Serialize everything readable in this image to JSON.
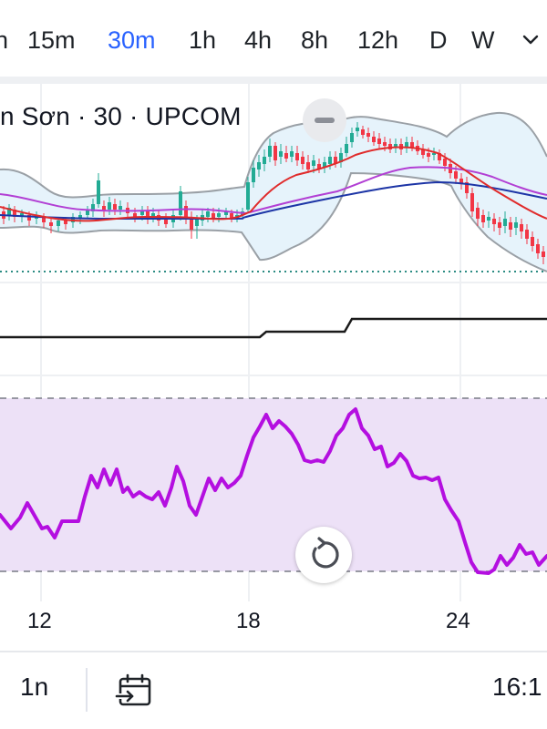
{
  "timeframes": [
    {
      "label": "n",
      "active": false
    },
    {
      "label": "15m",
      "active": false
    },
    {
      "label": "30m",
      "active": true
    },
    {
      "label": "1h",
      "active": false
    },
    {
      "label": "4h",
      "active": false
    },
    {
      "label": "8h",
      "active": false
    },
    {
      "label": "12h",
      "active": false
    },
    {
      "label": "D",
      "active": false
    },
    {
      "label": "W",
      "active": false
    }
  ],
  "legend": {
    "title": "n Sơn · 30 · UPCOM"
  },
  "colors": {
    "up": "#22ab94",
    "down": "#f23645",
    "accent": "#2962ff",
    "bollinger_band": "#9aa0a6",
    "bollinger_fill": "#e6f3fb",
    "ma_red": "#e02b2b",
    "ma_purple": "#b23fd4",
    "ma_blue": "#1d35a6",
    "rsi_line": "#b40fe0",
    "rsi_fill": "#ede1f7"
  },
  "x_axis": {
    "labels": [
      "12",
      "18",
      "24"
    ]
  },
  "bottom": {
    "range_label": "1n",
    "time_label": "16:1"
  },
  "icons": {
    "collapse": "minus-icon",
    "reset": "reset-rotate-icon",
    "goto_date": "calendar-goto-icon",
    "timeframe_more": "chevron-down-icon"
  }
}
